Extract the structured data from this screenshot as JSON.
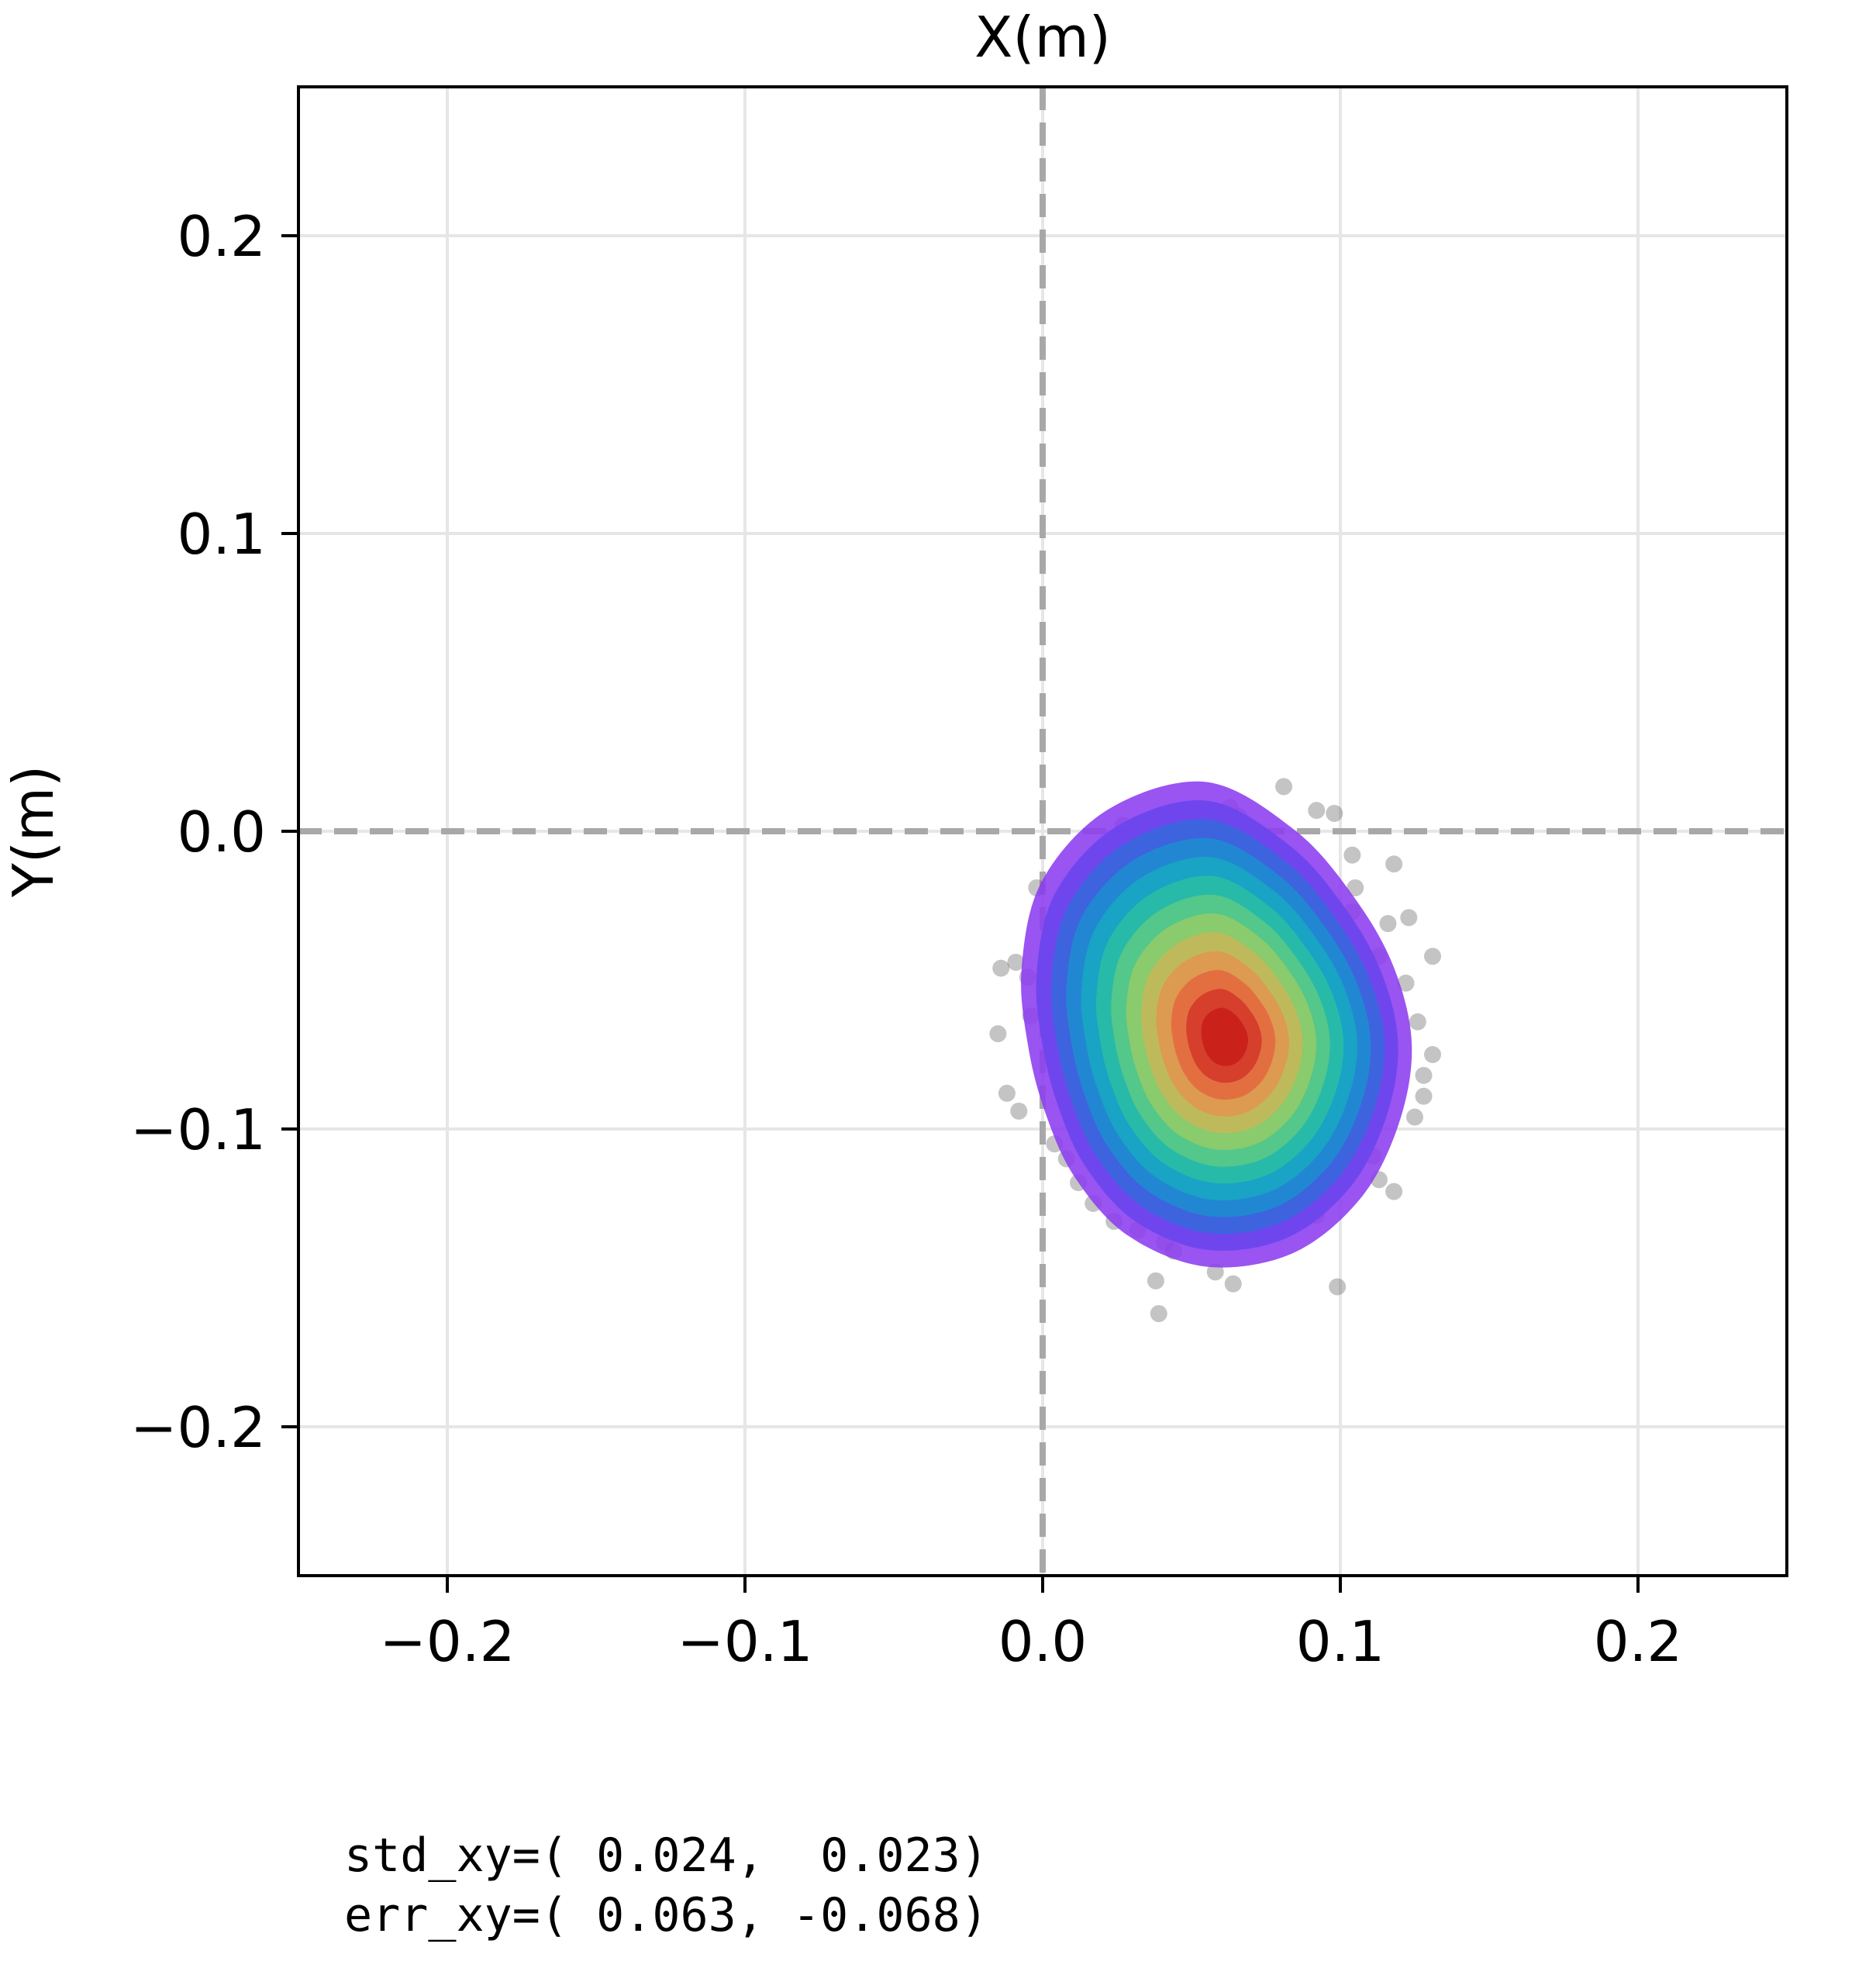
{
  "chart_data": {
    "type": "scatter",
    "title": "",
    "xlabel": "X(m)",
    "ylabel": "Y(m)",
    "xlim": [
      -0.25,
      0.25
    ],
    "ylim": [
      -0.25,
      0.25
    ],
    "grid": true,
    "x_ticks": [
      -0.2,
      -0.1,
      0.0,
      0.1,
      0.2
    ],
    "y_ticks": [
      -0.2,
      -0.1,
      0.0,
      0.1,
      0.2
    ],
    "x_tick_labels": [
      "−0.2",
      "−0.1",
      "0.0",
      "0.1",
      "0.2"
    ],
    "y_tick_labels": [
      "−0.2",
      "−0.1",
      "0.0",
      "0.1",
      "0.2"
    ],
    "reference_lines": [
      {
        "orientation": "vertical",
        "value": 0.0,
        "style": "dashed"
      },
      {
        "orientation": "horizontal",
        "value": 0.0,
        "style": "dashed"
      }
    ],
    "points": [
      [
        0.081,
        0.015
      ],
      [
        0.092,
        0.007
      ],
      [
        0.098,
        0.006
      ],
      [
        0.063,
        0.008
      ],
      [
        0.058,
        0.004
      ],
      [
        0.066,
        0.005
      ],
      [
        0.027,
        0.002
      ],
      [
        0.046,
        -0.002
      ],
      [
        0.068,
        -0.004
      ],
      [
        0.072,
        -0.003
      ],
      [
        0.104,
        -0.008
      ],
      [
        0.118,
        -0.011
      ],
      [
        0.029,
        -0.012
      ],
      [
        0.038,
        -0.013
      ],
      [
        -0.002,
        -0.019
      ],
      [
        0.012,
        -0.027
      ],
      [
        0.018,
        -0.031
      ],
      [
        0.123,
        -0.029
      ],
      [
        0.131,
        -0.042
      ],
      [
        -0.009,
        -0.044
      ],
      [
        -0.005,
        -0.049
      ],
      [
        -0.014,
        -0.046
      ],
      [
        -0.015,
        -0.068
      ],
      [
        -0.004,
        -0.062
      ],
      [
        -0.012,
        -0.088
      ],
      [
        -0.008,
        -0.094
      ],
      [
        0.004,
        -0.105
      ],
      [
        0.008,
        -0.11
      ],
      [
        0.012,
        -0.118
      ],
      [
        0.017,
        -0.125
      ],
      [
        0.024,
        -0.131
      ],
      [
        0.032,
        -0.134
      ],
      [
        0.041,
        -0.138
      ],
      [
        0.052,
        -0.131
      ],
      [
        0.064,
        -0.124
      ],
      [
        0.072,
        -0.137
      ],
      [
        0.084,
        -0.124
      ],
      [
        0.092,
        -0.129
      ],
      [
        0.095,
        -0.116
      ],
      [
        0.111,
        -0.109
      ],
      [
        0.113,
        -0.117
      ],
      [
        0.125,
        -0.096
      ],
      [
        0.128,
        -0.082
      ],
      [
        0.131,
        -0.075
      ],
      [
        0.126,
        -0.064
      ],
      [
        0.122,
        -0.051
      ],
      [
        0.113,
        -0.042
      ],
      [
        0.116,
        -0.031
      ],
      [
        0.105,
        -0.019
      ],
      [
        0.104,
        -0.027
      ],
      [
        0.044,
        -0.141
      ],
      [
        0.058,
        -0.148
      ],
      [
        0.038,
        -0.151
      ],
      [
        0.039,
        -0.162
      ],
      [
        0.064,
        -0.152
      ],
      [
        0.099,
        -0.153
      ],
      [
        0.079,
        -0.126
      ],
      [
        0.047,
        -0.124
      ],
      [
        0.128,
        -0.089
      ],
      [
        0.118,
        -0.121
      ]
    ],
    "density_levels": 12,
    "density_center": [
      0.055,
      -0.072
    ],
    "colormap": [
      "#8b3cf0",
      "#6b45ee",
      "#3a66dc",
      "#1f8ad0",
      "#19a5c2",
      "#29bca6",
      "#58c888",
      "#8ecb6a",
      "#c2b95a",
      "#e09750",
      "#e36b40",
      "#d43b2a",
      "#c91f1a"
    ],
    "point_color": "#555555",
    "annotations": [
      "std_xy=( 0.024,  0.023)",
      "err_xy=( 0.063, -0.068)"
    ]
  }
}
